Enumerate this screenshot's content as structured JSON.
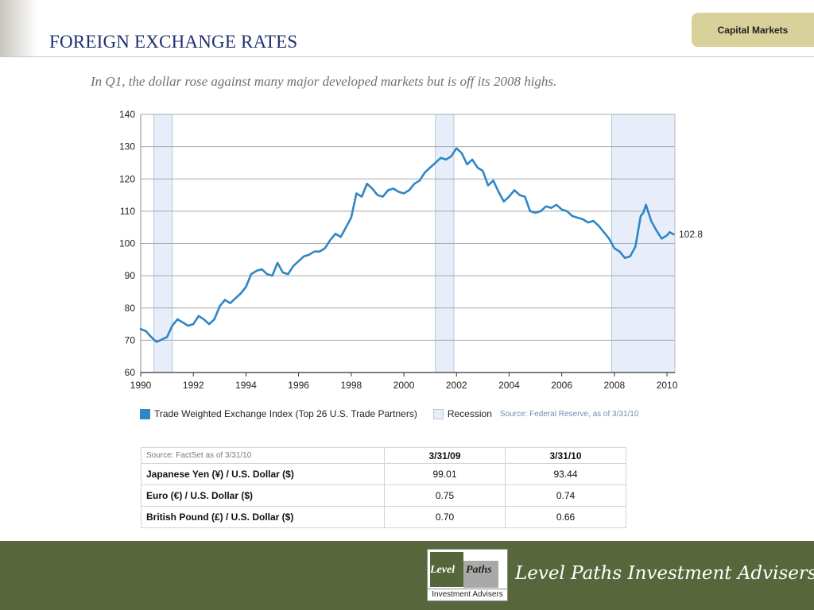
{
  "slide": {
    "title": "FOREIGN EXCHANGE RATES",
    "section_tab": "Capital Markets",
    "subtitle": "In Q1, the dollar rose against many major developed markets but is off its 2008 highs."
  },
  "colors": {
    "title": "#1f2f6f",
    "tab": "#d8d19a",
    "line": "#2f86c6",
    "recession_fill": "#e7eefa",
    "footer": "#58673b"
  },
  "chart_data": {
    "type": "line",
    "title": "",
    "xlabel": "",
    "ylabel": "",
    "xlim": [
      1990,
      2010.3
    ],
    "ylim": [
      60,
      140
    ],
    "yticks": [
      60,
      70,
      80,
      90,
      100,
      110,
      120,
      130,
      140
    ],
    "xticks": [
      1990,
      1992,
      1994,
      1996,
      1998,
      2000,
      2002,
      2004,
      2006,
      2008,
      2010
    ],
    "grid": "horizontal",
    "end_label": "102.8",
    "recessions": [
      [
        1990.5,
        1991.2
      ],
      [
        2001.2,
        2001.9
      ],
      [
        2007.9,
        2010.3
      ]
    ],
    "legend": [
      {
        "label": "Trade Weighted Exchange Index (Top 26 U.S. Trade Partners)",
        "kind": "line"
      },
      {
        "label": "Recession",
        "kind": "area"
      }
    ],
    "source": "Source: Federal Reserve, as of 3/31/10",
    "series": [
      {
        "name": "Trade Weighted Exchange Index (Top 26 U.S. Trade Partners)",
        "points": [
          [
            1990,
            73.5
          ],
          [
            1990.2,
            72.8
          ],
          [
            1990.4,
            71.0
          ],
          [
            1990.6,
            69.5
          ],
          [
            1990.8,
            70.2
          ],
          [
            1991.0,
            71.0
          ],
          [
            1991.2,
            74.5
          ],
          [
            1991.4,
            76.5
          ],
          [
            1991.6,
            75.5
          ],
          [
            1991.8,
            74.5
          ],
          [
            1992.0,
            75.0
          ],
          [
            1992.2,
            77.5
          ],
          [
            1992.4,
            76.5
          ],
          [
            1992.6,
            75.0
          ],
          [
            1992.8,
            76.5
          ],
          [
            1993.0,
            80.5
          ],
          [
            1993.2,
            82.5
          ],
          [
            1993.4,
            81.5
          ],
          [
            1993.6,
            83.0
          ],
          [
            1993.8,
            84.5
          ],
          [
            1994.0,
            86.5
          ],
          [
            1994.2,
            90.5
          ],
          [
            1994.4,
            91.5
          ],
          [
            1994.6,
            92.0
          ],
          [
            1994.8,
            90.5
          ],
          [
            1995.0,
            90.0
          ],
          [
            1995.2,
            94.0
          ],
          [
            1995.4,
            91.0
          ],
          [
            1995.6,
            90.5
          ],
          [
            1995.8,
            93.0
          ],
          [
            1996.0,
            94.5
          ],
          [
            1996.2,
            96.0
          ],
          [
            1996.4,
            96.5
          ],
          [
            1996.6,
            97.5
          ],
          [
            1996.8,
            97.5
          ],
          [
            1997.0,
            98.5
          ],
          [
            1997.2,
            101.0
          ],
          [
            1997.4,
            103.0
          ],
          [
            1997.6,
            102.0
          ],
          [
            1997.8,
            105.0
          ],
          [
            1998.0,
            108.0
          ],
          [
            1998.2,
            115.5
          ],
          [
            1998.4,
            114.5
          ],
          [
            1998.6,
            118.5
          ],
          [
            1998.8,
            117.0
          ],
          [
            1999.0,
            115.0
          ],
          [
            1999.2,
            114.5
          ],
          [
            1999.4,
            116.5
          ],
          [
            1999.6,
            117.0
          ],
          [
            1999.8,
            116.0
          ],
          [
            2000.0,
            115.5
          ],
          [
            2000.2,
            116.5
          ],
          [
            2000.4,
            118.5
          ],
          [
            2000.6,
            119.5
          ],
          [
            2000.8,
            122.0
          ],
          [
            2001.0,
            123.5
          ],
          [
            2001.2,
            125.0
          ],
          [
            2001.4,
            126.5
          ],
          [
            2001.6,
            126.0
          ],
          [
            2001.8,
            127.0
          ],
          [
            2002.0,
            129.5
          ],
          [
            2002.2,
            128.0
          ],
          [
            2002.4,
            124.5
          ],
          [
            2002.6,
            126.0
          ],
          [
            2002.8,
            123.5
          ],
          [
            2003.0,
            122.5
          ],
          [
            2003.2,
            118.0
          ],
          [
            2003.4,
            119.5
          ],
          [
            2003.6,
            116.0
          ],
          [
            2003.8,
            113.0
          ],
          [
            2004.0,
            114.5
          ],
          [
            2004.2,
            116.5
          ],
          [
            2004.4,
            115.0
          ],
          [
            2004.6,
            114.5
          ],
          [
            2004.8,
            110.0
          ],
          [
            2005.0,
            109.5
          ],
          [
            2005.2,
            110.0
          ],
          [
            2005.4,
            111.5
          ],
          [
            2005.6,
            111.0
          ],
          [
            2005.8,
            112.0
          ],
          [
            2006.0,
            110.5
          ],
          [
            2006.2,
            110.0
          ],
          [
            2006.4,
            108.5
          ],
          [
            2006.6,
            108.0
          ],
          [
            2006.8,
            107.5
          ],
          [
            2007.0,
            106.5
          ],
          [
            2007.2,
            107.0
          ],
          [
            2007.4,
            105.5
          ],
          [
            2007.6,
            103.5
          ],
          [
            2007.8,
            101.5
          ],
          [
            2008.0,
            98.5
          ],
          [
            2008.2,
            97.5
          ],
          [
            2008.4,
            95.5
          ],
          [
            2008.6,
            96.0
          ],
          [
            2008.8,
            99.0
          ],
          [
            2009.0,
            108.5
          ],
          [
            2009.1,
            109.5
          ],
          [
            2009.2,
            112.0
          ],
          [
            2009.4,
            107.0
          ],
          [
            2009.6,
            104.0
          ],
          [
            2009.8,
            101.5
          ],
          [
            2010.0,
            102.5
          ],
          [
            2010.1,
            103.5
          ],
          [
            2010.25,
            102.8
          ]
        ]
      }
    ]
  },
  "table": {
    "source": "Source: FactSet as of 3/31/10",
    "columns": [
      "3/31/09",
      "3/31/10"
    ],
    "rows": [
      {
        "label": "Japanese Yen (¥) / U.S. Dollar ($)",
        "values": [
          "99.01",
          "93.44"
        ]
      },
      {
        "label": "Euro (€) / U.S. Dollar ($)",
        "values": [
          "0.75",
          "0.74"
        ]
      },
      {
        "label": "British Pound (£) / U.S. Dollar ($)",
        "values": [
          "0.70",
          "0.66"
        ]
      }
    ]
  },
  "footer": {
    "brand": "Level Paths Investment Advisers",
    "logo_word1": "Level",
    "logo_word2": "Paths",
    "logo_tagline": "Investment Advisers"
  }
}
